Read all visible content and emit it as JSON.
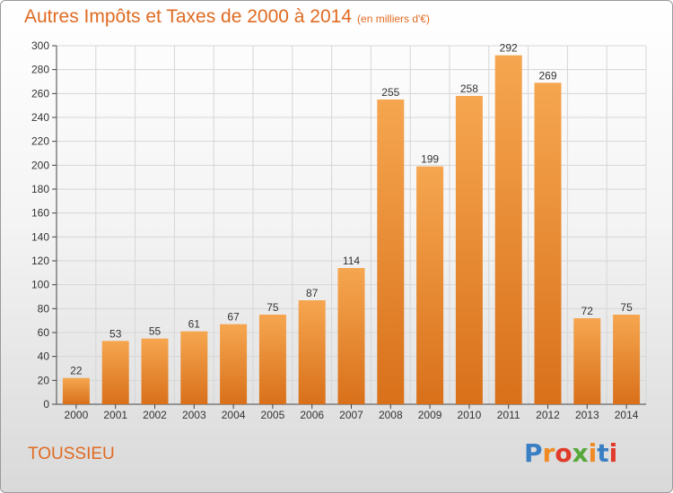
{
  "header": {
    "title": "Autres Impôts et Taxes de 2000 à 2014",
    "subtitle": "(en milliers d'€)"
  },
  "footer": {
    "commune": "TOUSSIEU",
    "logo": "Proxiti"
  },
  "colors": {
    "bar_top": "#f6a650",
    "bar_bottom": "#d9701a",
    "title": "#e06a21",
    "grid": "#d6d6d6"
  },
  "chart_data": {
    "type": "bar",
    "categories": [
      "2000",
      "2001",
      "2002",
      "2003",
      "2004",
      "2005",
      "2006",
      "2007",
      "2008",
      "2009",
      "2010",
      "2011",
      "2012",
      "2013",
      "2014"
    ],
    "values": [
      22,
      53,
      55,
      61,
      67,
      75,
      87,
      114,
      255,
      199,
      258,
      292,
      269,
      72,
      75
    ],
    "title": "Autres Impôts et Taxes de 2000 à 2014",
    "subtitle": "(en milliers d'€)",
    "xlabel": "",
    "ylabel": "",
    "ylim": [
      0,
      300
    ],
    "yticks": [
      0,
      20,
      40,
      60,
      80,
      100,
      120,
      140,
      160,
      180,
      200,
      220,
      240,
      260,
      280,
      300
    ],
    "grid": true,
    "data_labels": true,
    "legend": "none"
  }
}
